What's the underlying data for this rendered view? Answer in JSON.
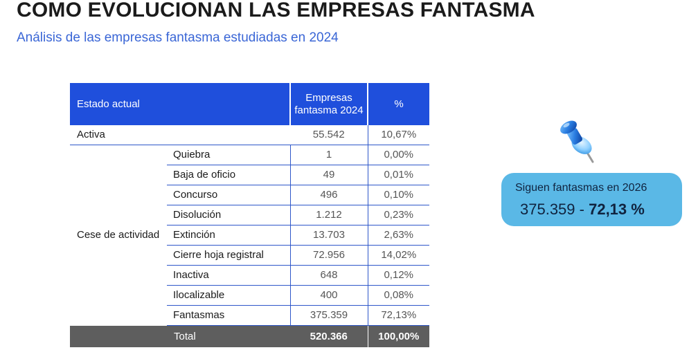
{
  "title": "COMO EVOLUCIONAN LAS EMPRESAS FANTASMA",
  "subtitle": "Análisis de las empresas fantasma estudiadas en 2024",
  "table": {
    "headers": [
      "Estado actual",
      "Empresas fantasma 2024",
      "%"
    ],
    "active_row": {
      "label": "Activa",
      "value": "55.542",
      "pct": "10,67%"
    },
    "cese_label": "Cese de actividad",
    "cese_rows": [
      {
        "label": "Quiebra",
        "value": "1",
        "pct": "0,00%"
      },
      {
        "label": "Baja de oficio",
        "value": "49",
        "pct": "0,01%"
      },
      {
        "label": "Concurso",
        "value": "496",
        "pct": "0,10%"
      },
      {
        "label": "Disolución",
        "value": "1.212",
        "pct": "0,23%"
      },
      {
        "label": "Extinción",
        "value": "13.703",
        "pct": "2,63%"
      },
      {
        "label": "Cierre hoja registral",
        "value": "72.956",
        "pct": "14,02%"
      },
      {
        "label": "Inactiva",
        "value": "648",
        "pct": "0,12%"
      },
      {
        "label": "Ilocalizable",
        "value": "400",
        "pct": "0,08%"
      },
      {
        "label": "Fantasmas",
        "value": "375.359",
        "pct": "72,13%"
      }
    ],
    "total": {
      "label": "Total",
      "value": "520.366",
      "pct": "100,00%"
    }
  },
  "callout": {
    "label": "Siguen fantasmas en 2026",
    "value": "375.359",
    "separator": " - ",
    "pct": "72,13 %"
  },
  "icons": {
    "pin": "pushpin-icon"
  },
  "colors": {
    "header_blue": "#1f4fdc",
    "subtitle_blue": "#3a66d6",
    "callout_bg": "#5ab8e6",
    "total_bg": "#5e5e5e"
  }
}
